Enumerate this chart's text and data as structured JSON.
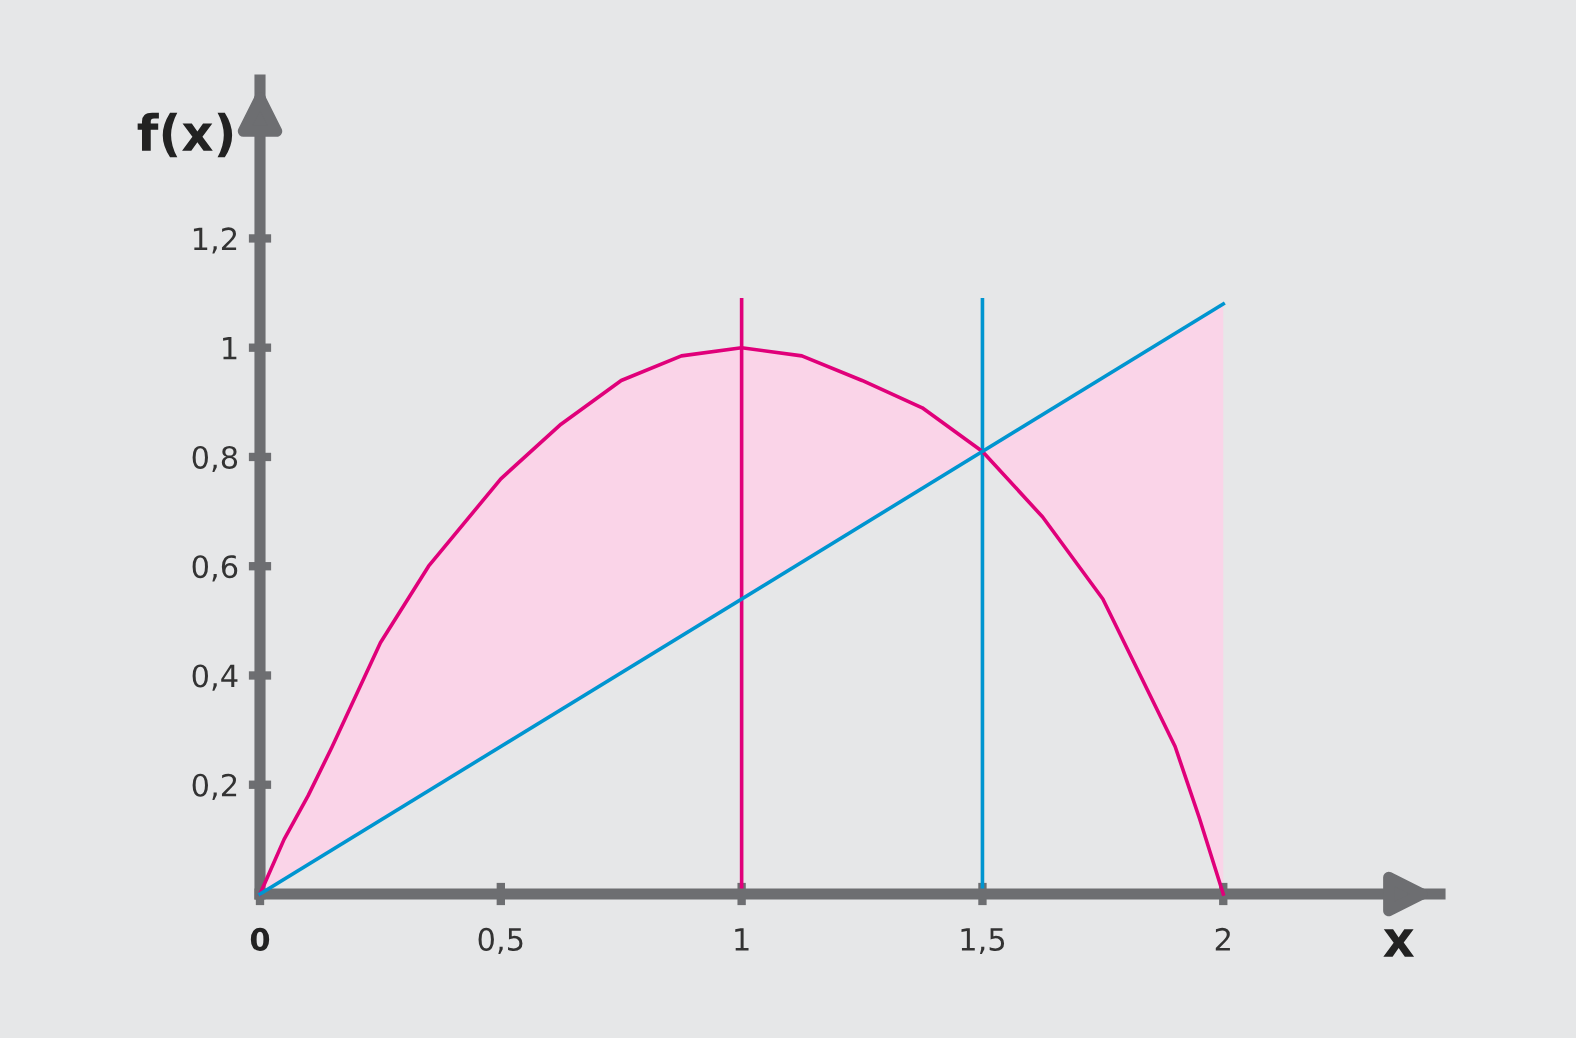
{
  "chart_data": {
    "type": "line",
    "xlabel": "x",
    "ylabel": "f(x)",
    "xlim": [
      0,
      2.45
    ],
    "ylim": [
      0,
      1.49
    ],
    "xticks": [
      {
        "value": 0,
        "label": "0"
      },
      {
        "value": 0.5,
        "label": "0,5"
      },
      {
        "value": 1,
        "label": "1"
      },
      {
        "value": 1.5,
        "label": "1,5"
      },
      {
        "value": 2,
        "label": "2"
      }
    ],
    "yticks": [
      {
        "value": 0.2,
        "label": "0,2"
      },
      {
        "value": 0.4,
        "label": "0,4"
      },
      {
        "value": 0.6,
        "label": "0,6"
      },
      {
        "value": 0.8,
        "label": "0,8"
      },
      {
        "value": 1,
        "label": "1"
      },
      {
        "value": 1.2,
        "label": "1,2"
      }
    ],
    "grid": false,
    "legend": false,
    "marker": "none",
    "line_style": "solid",
    "series": [
      {
        "color": "#e0007a",
        "x": [
          0,
          0.05,
          0.1,
          0.15,
          0.25,
          0.35,
          0.5,
          0.625,
          0.75,
          0.875,
          1,
          1.125,
          1.25,
          1.375,
          1.5,
          1.625,
          1.75,
          1.85,
          1.9,
          1.95,
          2
        ],
        "values": [
          0,
          0.1,
          0.18,
          0.27,
          0.46,
          0.6,
          0.76,
          0.86,
          0.94,
          0.985,
          1,
          0.985,
          0.94,
          0.89,
          0.81,
          0.69,
          0.54,
          0.36,
          0.27,
          0.14,
          0
        ],
        "lower": [
          0,
          0.027,
          0.054,
          0.081,
          0.135,
          0.189,
          0.27,
          0.3375,
          0.405,
          0.4725,
          0.54,
          0.6075,
          0.675,
          0.7425,
          0.81,
          0.69,
          0.54,
          0.36,
          0.27,
          0.14,
          0
        ],
        "upper": [
          0,
          0.1,
          0.18,
          0.27,
          0.46,
          0.6,
          0.76,
          0.86,
          0.94,
          0.985,
          1,
          0.985,
          0.94,
          0.89,
          0.81,
          0.8775,
          0.945,
          0.999,
          1.026,
          1.053,
          1.08
        ]
      },
      {
        "color": "#0095d0",
        "x": [
          0,
          2
        ],
        "values": [
          0,
          1.08
        ]
      }
    ],
    "ref_lines": [
      {
        "axis": "x",
        "value": 1,
        "color": "#e0007a"
      },
      {
        "axis": "x",
        "value": 1.5,
        "color": "#0095d0"
      }
    ]
  }
}
